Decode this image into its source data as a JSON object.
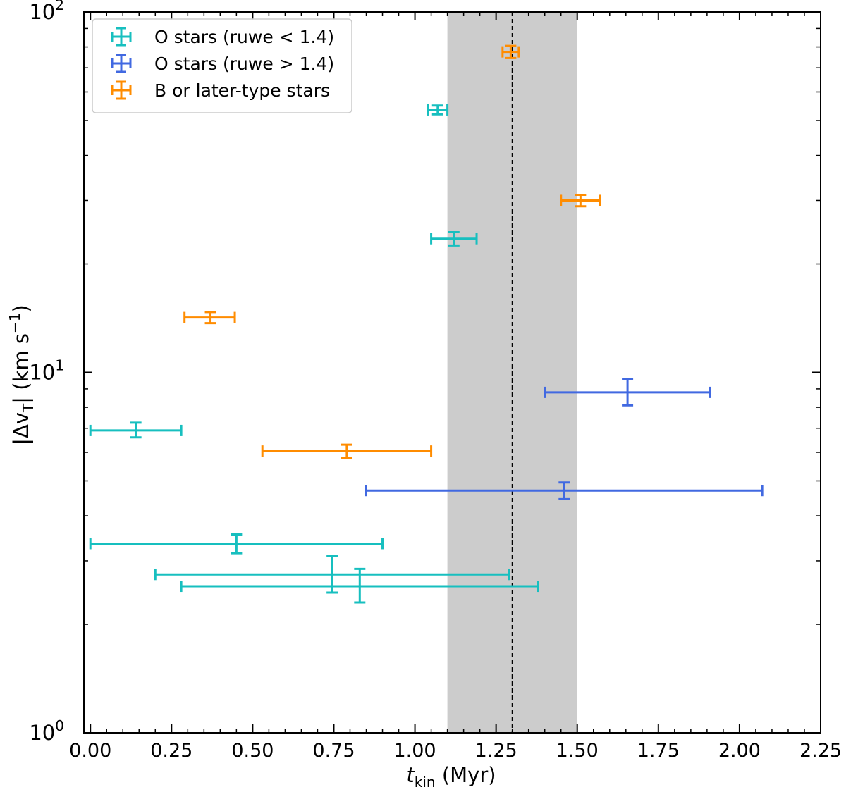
{
  "chart_data": {
    "type": "scatter",
    "title": "",
    "xlabel": "t",
    "xlabel_sub": "kin",
    "xlabel_unit": " (Myr)",
    "ylabel_main": "|Δv",
    "ylabel_sub": "T",
    "ylabel_rest": "| (km s",
    "ylabel_sup": "−1",
    "ylabel_close": ")",
    "x_scale": "linear",
    "y_scale": "log",
    "xlim": [
      -0.02,
      2.25
    ],
    "ylim": [
      1,
      100
    ],
    "x_ticks": [
      0.0,
      0.25,
      0.5,
      0.75,
      1.0,
      1.25,
      1.5,
      1.75,
      2.0,
      2.25
    ],
    "x_tick_labels": [
      "0.00",
      "0.25",
      "0.50",
      "0.75",
      "1.00",
      "1.25",
      "1.50",
      "1.75",
      "2.00",
      "2.25"
    ],
    "y_major_ticks": [
      {
        "value": 1,
        "base": "10",
        "exp": "0"
      },
      {
        "value": 10,
        "base": "10",
        "exp": "1"
      },
      {
        "value": 100,
        "base": "10",
        "exp": "2"
      }
    ],
    "shaded_band": {
      "x0": 1.1,
      "x1": 1.5,
      "color": "#cccccc"
    },
    "vertical_line": {
      "x": 1.3,
      "style": "dashed",
      "color": "#000000"
    },
    "legend_position": "upper-left",
    "series": [
      {
        "name": "O stars (ruwe < 1.4)",
        "color": "#17bfbf",
        "points": [
          {
            "x": 0.14,
            "xlo": 0.0,
            "xhi": 0.28,
            "y": 6.9,
            "ylo": 6.6,
            "yhi": 7.25
          },
          {
            "x": 0.45,
            "xlo": 0.0,
            "xhi": 0.9,
            "y": 3.35,
            "ylo": 3.15,
            "yhi": 3.55
          },
          {
            "x": 0.745,
            "xlo": 0.2,
            "xhi": 1.29,
            "y": 2.75,
            "ylo": 2.45,
            "yhi": 3.1
          },
          {
            "x": 0.83,
            "xlo": 0.28,
            "xhi": 1.38,
            "y": 2.55,
            "ylo": 2.3,
            "yhi": 2.85
          },
          {
            "x": 1.07,
            "xlo": 1.04,
            "xhi": 1.1,
            "y": 53.5,
            "ylo": 52.0,
            "yhi": 55.0
          },
          {
            "x": 1.12,
            "xlo": 1.05,
            "xhi": 1.19,
            "y": 23.5,
            "ylo": 22.5,
            "yhi": 24.5
          }
        ]
      },
      {
        "name": "O stars (ruwe > 1.4)",
        "color": "#4169e1",
        "points": [
          {
            "x": 1.655,
            "xlo": 1.4,
            "xhi": 1.91,
            "y": 8.8,
            "ylo": 8.1,
            "yhi": 9.6
          },
          {
            "x": 1.46,
            "xlo": 0.85,
            "xhi": 2.07,
            "y": 4.7,
            "ylo": 4.45,
            "yhi": 4.95
          }
        ]
      },
      {
        "name": "B or later-type stars",
        "color": "#ff8c00",
        "points": [
          {
            "x": 0.37,
            "xlo": 0.29,
            "xhi": 0.445,
            "y": 14.2,
            "ylo": 13.7,
            "yhi": 14.7
          },
          {
            "x": 0.79,
            "xlo": 0.53,
            "xhi": 1.05,
            "y": 6.05,
            "ylo": 5.8,
            "yhi": 6.3
          },
          {
            "x": 1.295,
            "xlo": 1.27,
            "xhi": 1.32,
            "y": 77.5,
            "ylo": 74.5,
            "yhi": 80.5
          },
          {
            "x": 1.51,
            "xlo": 1.45,
            "xhi": 1.57,
            "y": 30.0,
            "ylo": 28.9,
            "yhi": 31.1
          }
        ]
      }
    ]
  }
}
